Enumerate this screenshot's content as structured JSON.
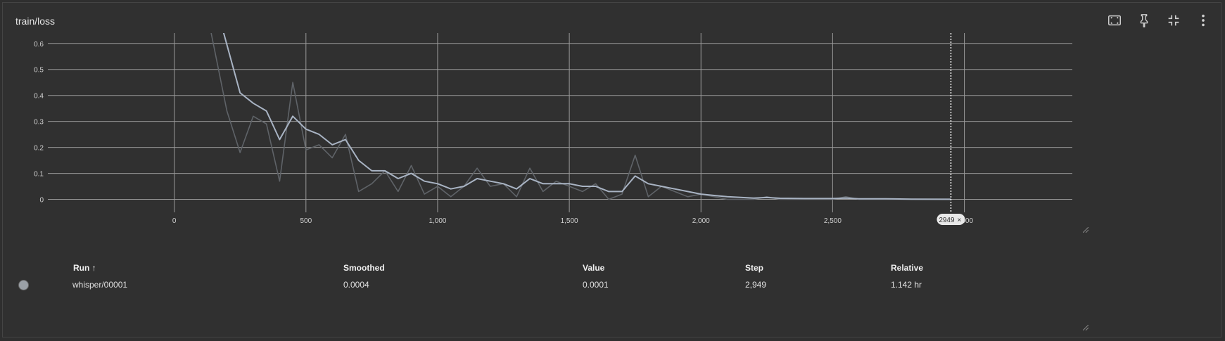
{
  "title": "train/loss",
  "toolbar": {
    "icons": [
      "fit-domain-icon",
      "pin-icon",
      "collapse-icon",
      "more-vert-icon"
    ]
  },
  "colors": {
    "background": "#303030",
    "grid": "#9a9a9a",
    "raw_line": "#5f6368",
    "smoothed_line": "#a9b4c4",
    "cursor": "#ffffff"
  },
  "chart_data": {
    "type": "line",
    "title": "train/loss",
    "xlabel": "",
    "ylabel": "",
    "xlim": [
      -480,
      3410
    ],
    "ylim": [
      -0.05,
      0.64
    ],
    "x_ticks": [
      0,
      500,
      1000,
      1500,
      2000,
      2500,
      3000
    ],
    "x_tick_labels": [
      "0",
      "500",
      "1,000",
      "1,500",
      "2,000",
      "2,500",
      "3,000"
    ],
    "y_ticks": [
      0,
      0.1,
      0.2,
      0.3,
      0.4,
      0.5,
      0.6
    ],
    "y_tick_labels": [
      "0",
      "0.1",
      "0.2",
      "0.3",
      "0.4",
      "0.5",
      "0.6"
    ],
    "grid": true,
    "cursor_step": 2949,
    "cursor_label": "2949",
    "series": [
      {
        "role": "raw",
        "x": [
          140,
          200,
          250,
          300,
          350,
          400,
          450,
          500,
          550,
          600,
          650,
          700,
          750,
          800,
          850,
          900,
          950,
          1000,
          1050,
          1100,
          1150,
          1200,
          1250,
          1300,
          1350,
          1400,
          1450,
          1500,
          1550,
          1600,
          1650,
          1700,
          1750,
          1800,
          1850,
          1900,
          1950,
          2000,
          2100,
          2200,
          2250,
          2300,
          2400,
          2500,
          2550,
          2600,
          2700,
          2800,
          2949
        ],
        "values": [
          0.64,
          0.34,
          0.18,
          0.32,
          0.29,
          0.07,
          0.45,
          0.19,
          0.21,
          0.16,
          0.25,
          0.03,
          0.06,
          0.11,
          0.03,
          0.13,
          0.02,
          0.05,
          0.01,
          0.05,
          0.12,
          0.05,
          0.06,
          0.01,
          0.12,
          0.03,
          0.07,
          0.05,
          0.03,
          0.06,
          0.0,
          0.02,
          0.17,
          0.01,
          0.05,
          0.03,
          0.01,
          0.02,
          0.0,
          0.0,
          0.01,
          0.0,
          0.0,
          0.0,
          0.01,
          0.0,
          0.0,
          0.0,
          0.0001
        ]
      },
      {
        "role": "smoothed",
        "x": [
          185,
          250,
          300,
          350,
          400,
          450,
          500,
          550,
          600,
          650,
          700,
          750,
          800,
          850,
          900,
          950,
          1000,
          1050,
          1100,
          1150,
          1200,
          1250,
          1300,
          1350,
          1400,
          1450,
          1500,
          1550,
          1600,
          1650,
          1700,
          1750,
          1800,
          1850,
          1900,
          1950,
          2000,
          2050,
          2100,
          2200,
          2250,
          2300,
          2400,
          2500,
          2550,
          2600,
          2700,
          2800,
          2949
        ],
        "values": [
          0.65,
          0.41,
          0.37,
          0.34,
          0.23,
          0.32,
          0.27,
          0.25,
          0.21,
          0.23,
          0.15,
          0.11,
          0.11,
          0.08,
          0.1,
          0.07,
          0.06,
          0.04,
          0.05,
          0.08,
          0.07,
          0.06,
          0.04,
          0.08,
          0.06,
          0.06,
          0.06,
          0.05,
          0.05,
          0.03,
          0.03,
          0.09,
          0.06,
          0.05,
          0.04,
          0.03,
          0.02,
          0.015,
          0.01,
          0.005,
          0.007,
          0.004,
          0.003,
          0.003,
          0.005,
          0.002,
          0.002,
          0.001,
          0.0004
        ]
      }
    ]
  },
  "table": {
    "headers": {
      "run": "Run ↑",
      "smoothed": "Smoothed",
      "value": "Value",
      "step": "Step",
      "relative": "Relative"
    },
    "rows": [
      {
        "run": "whisper/00001",
        "smoothed": "0.0004",
        "value": "0.0001",
        "step": "2,949",
        "relative": "1.142 hr"
      }
    ]
  }
}
